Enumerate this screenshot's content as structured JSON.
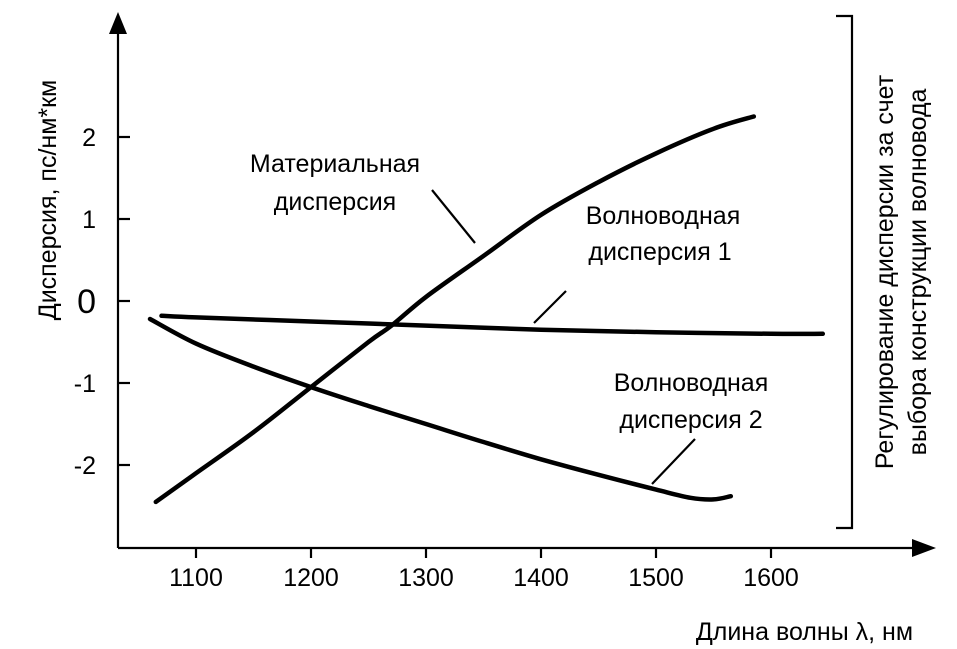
{
  "chart_data": {
    "type": "line",
    "xlabel": "Длина волны λ, нм",
    "ylabel": "Дисперсия, пс/нм*км",
    "xlim": [
      1040,
      1640
    ],
    "ylim": [
      -3,
      3
    ],
    "x_ticks": [
      "1100",
      "1200",
      "1300",
      "1400",
      "1500",
      "1600"
    ],
    "x_tick_values": [
      1100,
      1200,
      1300,
      1400,
      1500,
      1600
    ],
    "y_ticks": [
      "2",
      "1",
      "0",
      "-1",
      "-2"
    ],
    "y_tick_values": [
      2,
      1,
      0,
      -1,
      -2
    ],
    "series": [
      {
        "name": "Материальная дисперсия",
        "x": [
          1065,
          1100,
          1150,
          1200,
          1250,
          1270,
          1300,
          1350,
          1400,
          1450,
          1500,
          1550,
          1585
        ],
        "y": [
          -2.45,
          -2.1,
          -1.6,
          -1.05,
          -0.5,
          -0.3,
          0.05,
          0.55,
          1.05,
          1.45,
          1.8,
          2.1,
          2.25
        ]
      },
      {
        "name": "Волноводная дисперсия 1",
        "x": [
          1070,
          1100,
          1200,
          1300,
          1400,
          1500,
          1600,
          1645
        ],
        "y": [
          -0.18,
          -0.2,
          -0.25,
          -0.3,
          -0.35,
          -0.38,
          -0.4,
          -0.4
        ]
      },
      {
        "name": "Волноводная дисперсия 2",
        "x": [
          1060,
          1100,
          1150,
          1200,
          1250,
          1300,
          1350,
          1400,
          1450,
          1500,
          1530,
          1550,
          1565
        ],
        "y": [
          -0.22,
          -0.52,
          -0.8,
          -1.05,
          -1.28,
          -1.5,
          -1.72,
          -1.93,
          -2.12,
          -2.3,
          -2.4,
          -2.42,
          -2.38
        ]
      }
    ],
    "annotations": {
      "material": [
        "Материальная",
        "дисперсия"
      ],
      "waveguide1": [
        "Волноводная",
        "дисперсия 1"
      ],
      "waveguide2": [
        "Волноводная",
        "дисперсия 2"
      ],
      "bracket": [
        "Регулирование дисперсии за счет",
        "выбора конструкции волновода"
      ]
    },
    "grid": false,
    "legend": "none"
  }
}
